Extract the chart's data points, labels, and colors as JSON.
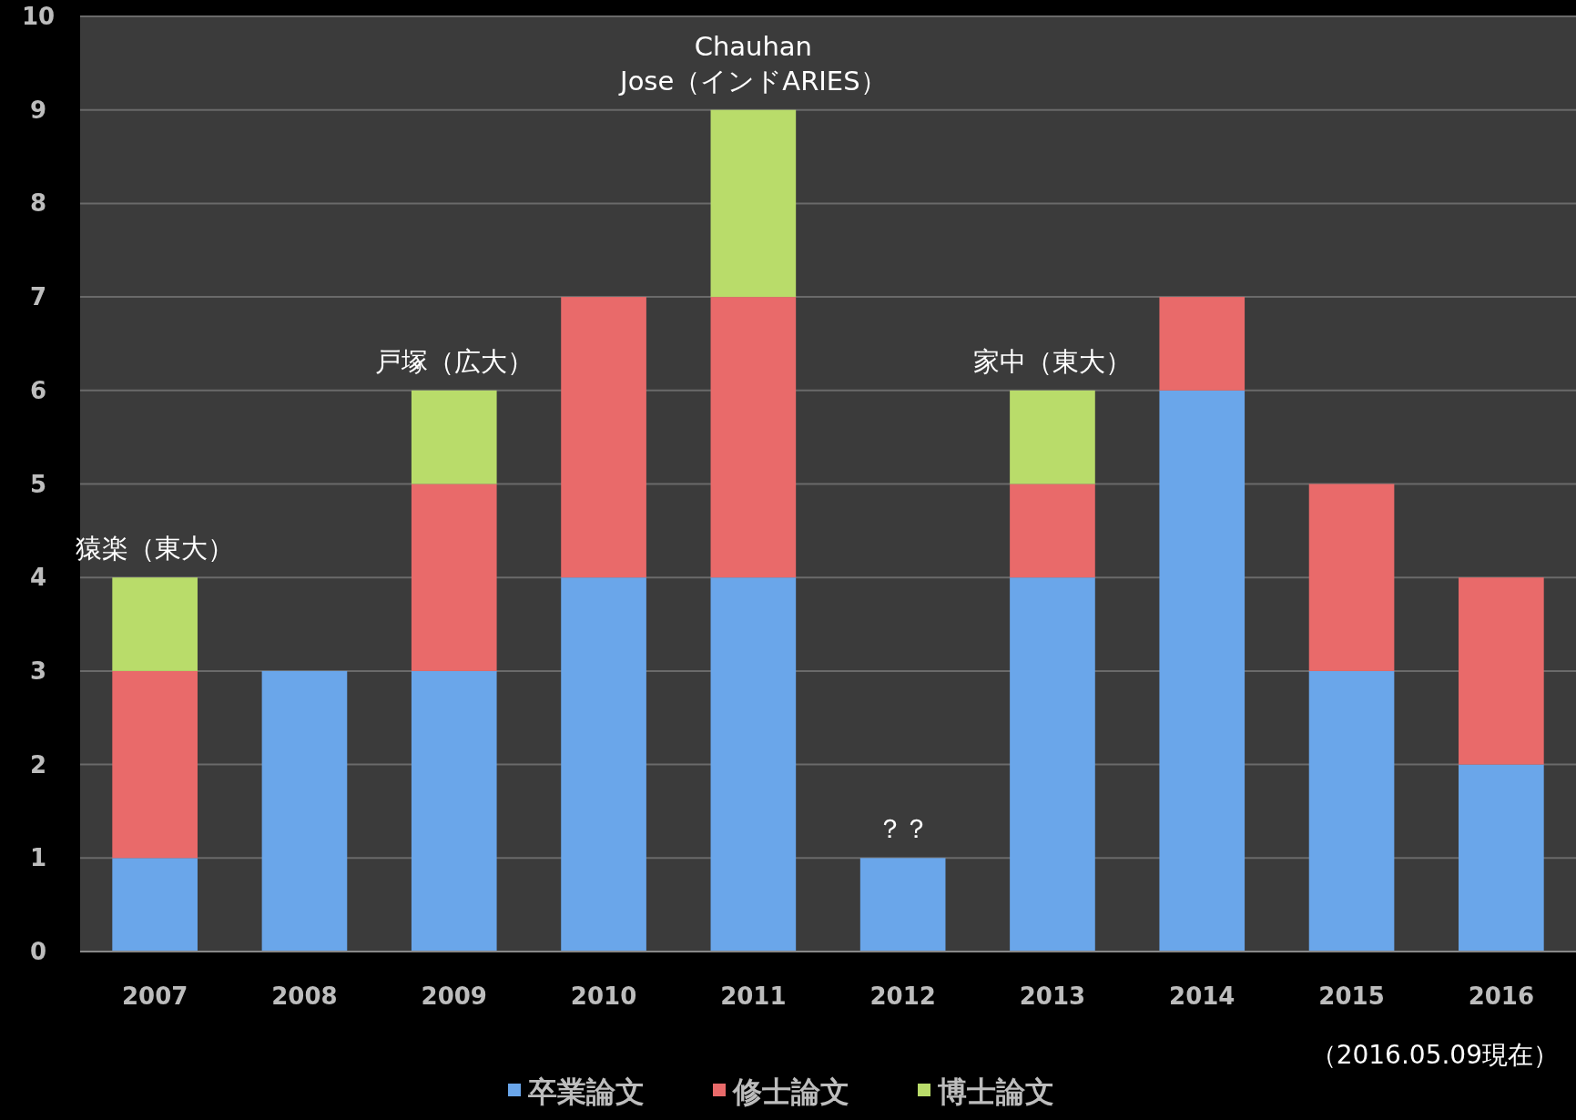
{
  "chart_data": {
    "type": "bar",
    "stacked": true,
    "grid": "y",
    "legend": "bottom",
    "categories": [
      "2007",
      "2008",
      "2009",
      "2010",
      "2011",
      "2012",
      "2013",
      "2014",
      "2015",
      "2016"
    ],
    "series": [
      {
        "name": "卒業論文",
        "color": "#6aa6ea",
        "values": [
          1,
          3,
          3,
          4,
          4,
          1,
          4,
          6,
          3,
          2
        ]
      },
      {
        "name": "修士論文",
        "color": "#e96a6a",
        "values": [
          2,
          0,
          2,
          3,
          3,
          0,
          1,
          1,
          2,
          2
        ]
      },
      {
        "name": "博士論文",
        "color": "#b9dc6a",
        "values": [
          1,
          0,
          1,
          0,
          2,
          0,
          1,
          0,
          0,
          0
        ]
      }
    ],
    "ylim": [
      0,
      10
    ],
    "yticks": [
      0,
      1,
      2,
      3,
      4,
      5,
      6,
      7,
      8,
      9,
      10
    ],
    "annotations": [
      {
        "text": "猿楽（東大）",
        "x": "2007",
        "y": 4
      },
      {
        "text": "戸塚（広大）",
        "x": "2009",
        "y": 6
      },
      {
        "text": "Jose（インドARIES）",
        "x": "2011",
        "y": 9
      },
      {
        "text": "Chauhan",
        "x": "2011",
        "y": 9
      },
      {
        "text": "？？",
        "x": "2012",
        "y": 1
      },
      {
        "text": "家中（東大）",
        "x": "2013",
        "y": 6
      },
      "（2016.05.09現在）"
    ]
  }
}
